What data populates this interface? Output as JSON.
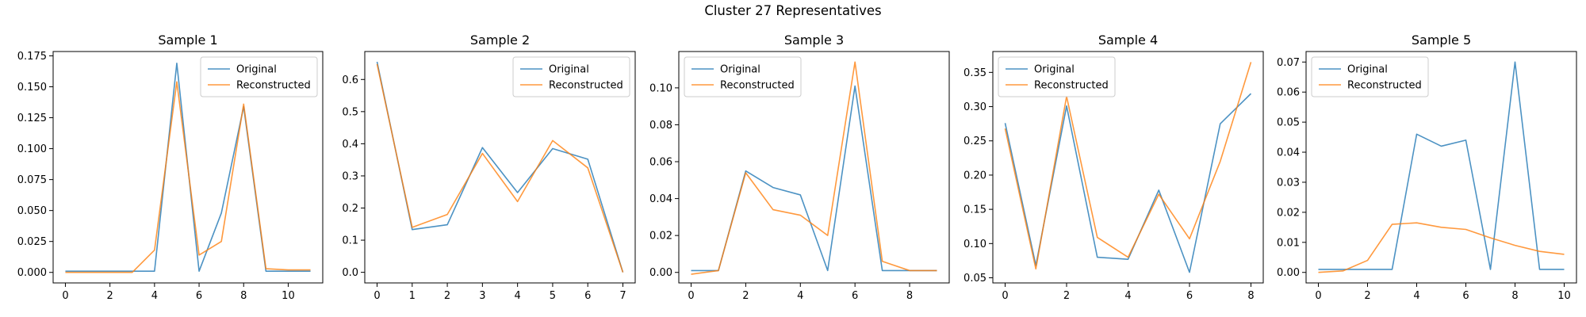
{
  "figure": {
    "suptitle": "Cluster 27 Representatives",
    "colors": {
      "original": "#1f77b4",
      "reconstructed": "#ff7f0e"
    }
  },
  "chart_data": [
    {
      "type": "line",
      "title": "Sample 1",
      "legend": "top-right",
      "xlim": [
        -0.55,
        11.55
      ],
      "ylim": [
        -0.0085,
        0.1785
      ],
      "xticks": [
        0,
        2,
        4,
        6,
        8,
        10
      ],
      "yticks": [
        0.0,
        0.025,
        0.05,
        0.075,
        0.1,
        0.125,
        0.15,
        0.175
      ],
      "ytick_labels": [
        "0.000",
        "0.025",
        "0.050",
        "0.075",
        "0.100",
        "0.125",
        "0.150",
        "0.175"
      ],
      "x": [
        0,
        1,
        2,
        3,
        4,
        5,
        6,
        7,
        8,
        9,
        10,
        11
      ],
      "series": [
        {
          "name": "Original",
          "values": [
            0.001,
            0.001,
            0.001,
            0.001,
            0.001,
            0.169,
            0.001,
            0.048,
            0.134,
            0.001,
            0.001,
            0.001
          ]
        },
        {
          "name": "Reconstructed",
          "values": [
            0.0,
            0.0,
            0.0,
            0.0,
            0.018,
            0.154,
            0.014,
            0.025,
            0.136,
            0.003,
            0.002,
            0.002
          ]
        }
      ]
    },
    {
      "type": "line",
      "title": "Sample 2",
      "legend": "top-right",
      "xlim": [
        -0.35,
        7.35
      ],
      "ylim": [
        -0.033,
        0.687
      ],
      "xticks": [
        0,
        1,
        2,
        3,
        4,
        5,
        6,
        7
      ],
      "yticks": [
        0.0,
        0.1,
        0.2,
        0.3,
        0.4,
        0.5,
        0.6
      ],
      "ytick_labels": [
        "0.0",
        "0.1",
        "0.2",
        "0.3",
        "0.4",
        "0.5",
        "0.6"
      ],
      "x": [
        0,
        1,
        2,
        3,
        4,
        5,
        6,
        7
      ],
      "series": [
        {
          "name": "Original",
          "values": [
            0.655,
            0.133,
            0.148,
            0.388,
            0.248,
            0.385,
            0.352,
            0.0
          ]
        },
        {
          "name": "Reconstructed",
          "values": [
            0.648,
            0.14,
            0.18,
            0.37,
            0.22,
            0.41,
            0.325,
            0.0
          ]
        }
      ]
    },
    {
      "type": "line",
      "title": "Sample 3",
      "legend": "top-left",
      "xlim": [
        -0.45,
        9.45
      ],
      "ylim": [
        -0.0057,
        0.1197
      ],
      "xticks": [
        0,
        2,
        4,
        6,
        8
      ],
      "yticks": [
        0.0,
        0.02,
        0.04,
        0.06,
        0.08,
        0.1
      ],
      "ytick_labels": [
        "0.00",
        "0.02",
        "0.04",
        "0.06",
        "0.08",
        "0.10"
      ],
      "x": [
        0,
        1,
        2,
        3,
        4,
        5,
        6,
        7,
        8,
        9
      ],
      "series": [
        {
          "name": "Original",
          "values": [
            0.001,
            0.001,
            0.055,
            0.046,
            0.042,
            0.001,
            0.101,
            0.001,
            0.001,
            0.001
          ]
        },
        {
          "name": "Reconstructed",
          "values": [
            -0.001,
            0.001,
            0.054,
            0.034,
            0.031,
            0.02,
            0.114,
            0.006,
            0.001,
            0.001
          ]
        }
      ]
    },
    {
      "type": "line",
      "title": "Sample 4",
      "legend": "top-left",
      "xlim": [
        -0.4,
        8.4
      ],
      "ylim": [
        0.0425,
        0.3805
      ],
      "xticks": [
        0,
        2,
        4,
        6,
        8
      ],
      "yticks": [
        0.05,
        0.1,
        0.15,
        0.2,
        0.25,
        0.3,
        0.35
      ],
      "ytick_labels": [
        "0.05",
        "0.10",
        "0.15",
        "0.20",
        "0.25",
        "0.30",
        "0.35"
      ],
      "x": [
        0,
        1,
        2,
        3,
        4,
        5,
        6,
        7,
        8
      ],
      "series": [
        {
          "name": "Original",
          "values": [
            0.276,
            0.068,
            0.301,
            0.08,
            0.077,
            0.178,
            0.058,
            0.275,
            0.319
          ]
        },
        {
          "name": "Reconstructed",
          "values": [
            0.268,
            0.063,
            0.315,
            0.109,
            0.08,
            0.172,
            0.107,
            0.22,
            0.365
          ]
        }
      ]
    },
    {
      "type": "line",
      "title": "Sample 5",
      "legend": "top-left",
      "xlim": [
        -0.5,
        10.5
      ],
      "ylim": [
        -0.0035,
        0.0735
      ],
      "xticks": [
        0,
        2,
        4,
        6,
        8,
        10
      ],
      "yticks": [
        0.0,
        0.01,
        0.02,
        0.03,
        0.04,
        0.05,
        0.06,
        0.07
      ],
      "ytick_labels": [
        "0.00",
        "0.01",
        "0.02",
        "0.03",
        "0.04",
        "0.05",
        "0.06",
        "0.07"
      ],
      "x": [
        0,
        1,
        2,
        3,
        4,
        5,
        6,
        7,
        8,
        9,
        10
      ],
      "series": [
        {
          "name": "Original",
          "values": [
            0.001,
            0.001,
            0.001,
            0.001,
            0.046,
            0.042,
            0.044,
            0.001,
            0.07,
            0.001,
            0.001
          ]
        },
        {
          "name": "Reconstructed",
          "values": [
            0.0,
            0.0005,
            0.004,
            0.016,
            0.0165,
            0.015,
            0.0143,
            0.0115,
            0.009,
            0.007,
            0.006
          ]
        }
      ]
    }
  ]
}
